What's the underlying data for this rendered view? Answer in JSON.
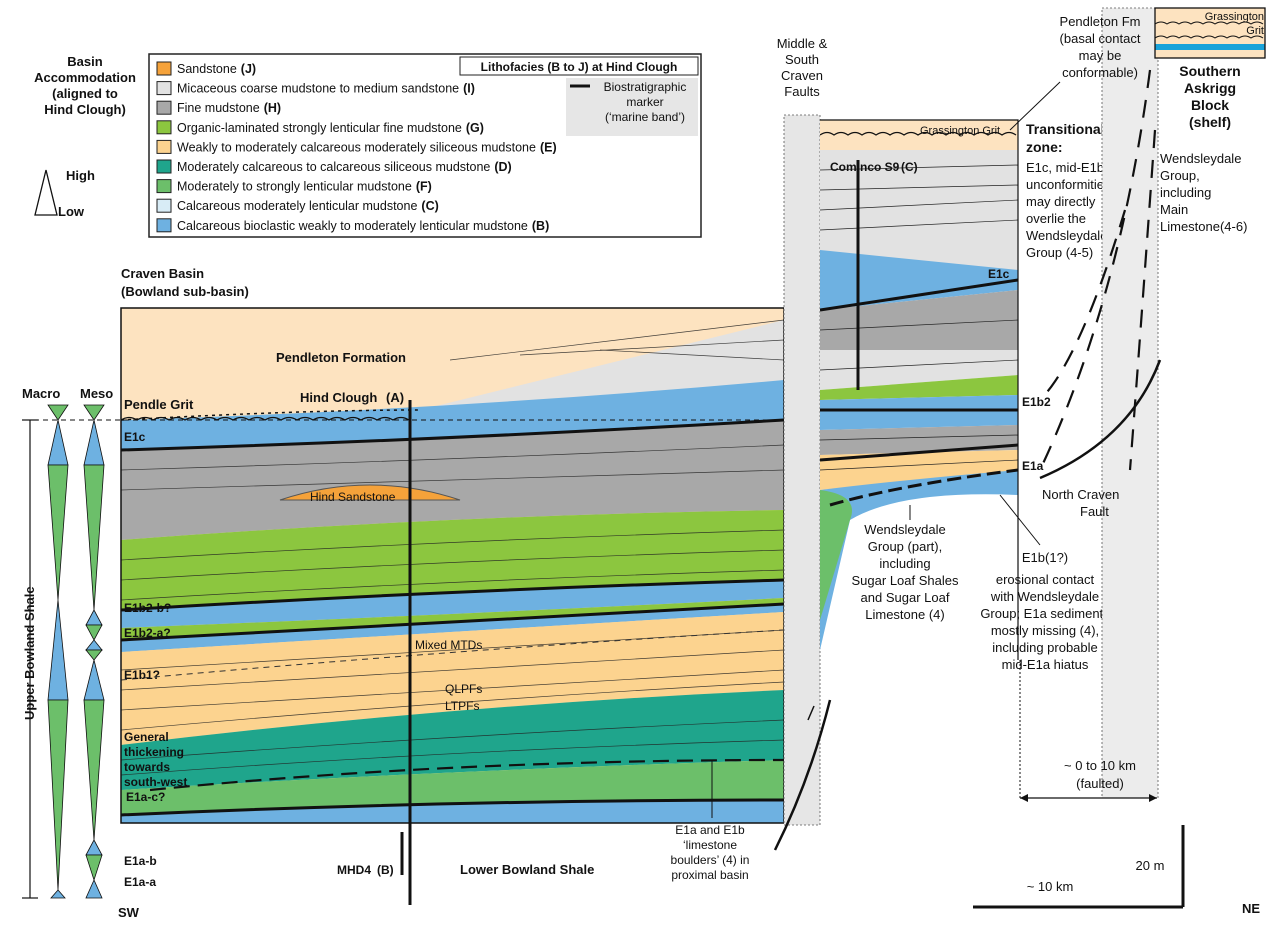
{
  "accommodation": {
    "title_lines": [
      "Basin",
      "Accommodation",
      "(aligned to",
      "Hind Clough)"
    ],
    "high": "High",
    "low": "Low"
  },
  "legend": {
    "header": "Lithofacies (B to J) at Hind Clough",
    "marker_lines": [
      "Biostratigraphic",
      "marker",
      "(‘marine band’)"
    ],
    "items": [
      {
        "label": "Sandstone",
        "code": "(J)",
        "color": "#f5a23a"
      },
      {
        "label": "Micaceous coarse mudstone to medium sandstone",
        "code": "(I)",
        "color": "#e2e2e2"
      },
      {
        "label": "Fine mudstone",
        "code": "(H)",
        "color": "#a8a8a8"
      },
      {
        "label": "Organic-laminated strongly lenticular fine mudstone",
        "code": "(G)",
        "color": "#8cc63f"
      },
      {
        "label": "Weakly to moderately calcareous moderately siliceous mudstone",
        "code": "(E)",
        "color": "#fcd38f"
      },
      {
        "label": "Moderately calcareous to calcareous siliceous mudstone",
        "code": "(D)",
        "color": "#1fa58c"
      },
      {
        "label": "Moderately to strongly lenticular mudstone",
        "code": "(F)",
        "color": "#6cbf6a"
      },
      {
        "label": "Calcareous moderately lenticular mudstone",
        "code": "(C)",
        "color": "#d8ecf6"
      },
      {
        "label": "Calcareous bioclastic weakly to moderately lenticular mudstone",
        "code": "(B)",
        "color": "#6eb1e1"
      }
    ]
  },
  "basin": {
    "title_lines": [
      "Craven Basin",
      "(Bowland sub-basin)"
    ],
    "pendleton_formation": "Pendleton Formation",
    "pendle_grit": "Pendle Grit",
    "hind_clough": "Hind Clough",
    "hind_clough_code": "(A)",
    "hind_sandstone": "Hind Sandstone",
    "mixed_mtds": "Mixed MTDs",
    "qlpfs": "QLPFs",
    "ltpfs": "LTPFs",
    "thickening_lines": [
      "General",
      "thickening",
      "towards",
      "south-west"
    ],
    "lower_bowland": "Lower Bowland Shale",
    "mhd4": "MHD4",
    "mhd4_code": "(B)",
    "marker_labels": [
      "E1c",
      "E1b2-b?",
      "E1b2-a?",
      "E1b1?",
      "E1a-c?",
      "E1a-b",
      "E1a-a"
    ],
    "limestone_lines": [
      "E1a and E1b",
      "‘limestone",
      "boulders’ (4) in",
      "proximal basin"
    ]
  },
  "column_headers": {
    "macro": "Macro",
    "meso": "Meso"
  },
  "upper_bowland": "Upper Bowland Shale",
  "faults": {
    "middle_south": [
      "Middle &",
      "South",
      "Craven",
      "Faults"
    ],
    "north_craven": [
      "North Craven",
      "Fault"
    ]
  },
  "transition": {
    "grassington": "Grassington Grit",
    "cominco": "Cominco S9",
    "cominco_code": "(C)",
    "markers": [
      "E1c",
      "E1b2",
      "E1a"
    ],
    "zone_lines": [
      "Transitional",
      "zone:",
      "E1c, mid-E1b1;",
      "unconformities",
      "may directly",
      "overlie the",
      "Wendsleydale",
      "Group (4-5)"
    ],
    "wend_lines": [
      "Wendsleydale",
      "Group (part),",
      "including",
      "Sugar Loaf Shales",
      "and Sugar Loaf",
      "Limestone (4)"
    ],
    "erosion_lines": [
      "E1b(1?)",
      "erosional contact",
      "with Wendsleydale",
      "Group; E1a sediments",
      "mostly missing (4),",
      "including probable",
      "mid-E1a hiatus"
    ]
  },
  "shelf": {
    "pendleton_lines": [
      "Pendleton Fm",
      "(basal contact",
      "may be",
      "conformable)"
    ],
    "grassington_lines": [
      "Grassington",
      "Grit"
    ],
    "block_lines": [
      "Southern",
      "Askrigg",
      "Block",
      "(shelf)"
    ],
    "group_lines": [
      "Wendsleydale",
      "Group,",
      "including",
      "Main",
      "Limestone(4-6)"
    ],
    "distance_lines": [
      "~ 0 to 10 km",
      "(faulted)"
    ]
  },
  "scale": {
    "vertical": "20 m",
    "horizontal": "~ 10 km"
  },
  "orientation": {
    "sw": "SW",
    "ne": "NE"
  }
}
